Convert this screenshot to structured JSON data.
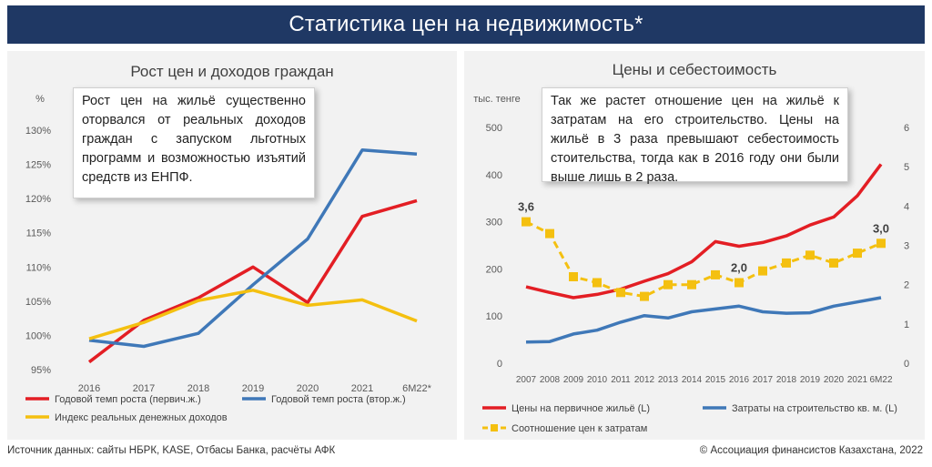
{
  "banner": {
    "title": "Статистика цен на недвижимость*"
  },
  "colors": {
    "red": "#e31e24",
    "blue": "#3f78b8",
    "yellow": "#f4c010",
    "banner": "#1f3864",
    "panel": "#f2f2f2"
  },
  "left_panel": {
    "title": "Рост цен и доходов граждан",
    "note": "Рост цен на жильё существенно оторвался от реальных доходов граждан с запуском льготных программ и возможностью изъятий средств из ЕНПФ."
  },
  "right_panel": {
    "title": "Цены и себестоимость",
    "note": "Так же растет отношение цен на жильё к затратам на его строительство. Цены на жильё в 3 раза превышают себестоимость стоительства, тогда как в 2016 году они были выше лишь в 2 раза."
  },
  "footer": {
    "source": "Источник данных: сайты НБРК, KASE, Отбасы Банка, расчёты АФК",
    "copyright": "© Ассоциация финансистов Казахстана, 2022"
  },
  "chart_data": [
    {
      "type": "line",
      "title": "Рост цен и доходов граждан",
      "ylabel": "%",
      "categories": [
        "2016",
        "2017",
        "2018",
        "2019",
        "2020",
        "2021",
        "6M22*"
      ],
      "ylim": [
        95,
        130
      ],
      "yticks": [
        "95%",
        "100%",
        "105%",
        "110%",
        "115%",
        "120%",
        "125%",
        "130%"
      ],
      "grid": false,
      "legend": "bottom",
      "series": [
        {
          "name": "Годовой темп роста (первич.ж.)",
          "color": "#e31e24",
          "values": [
            96.1,
            102.2,
            105.5,
            110.0,
            104.8,
            117.4,
            119.7
          ]
        },
        {
          "name": "Годовой темп роста (втор.ж.)",
          "color": "#3f78b8",
          "values": [
            99.3,
            98.4,
            100.3,
            107.4,
            114.1,
            127.1,
            126.5
          ]
        },
        {
          "name": "Индекс реальных денежных доходов",
          "color": "#f4c010",
          "values": [
            99.5,
            101.9,
            105.1,
            106.6,
            104.4,
            105.2,
            102.1
          ]
        }
      ]
    },
    {
      "type": "line",
      "title": "Цены и себестоимость",
      "ylabel": "тыс. тенге",
      "categories": [
        "2007",
        "2008",
        "2009",
        "2010",
        "2011",
        "2012",
        "2013",
        "2014",
        "2015",
        "2016",
        "2017",
        "2018",
        "2019",
        "2020",
        "2021",
        "6M22"
      ],
      "ylim": [
        0,
        500
      ],
      "yticks": [
        "0",
        "100",
        "200",
        "300",
        "400",
        "500"
      ],
      "y2lim": [
        0,
        6
      ],
      "y2ticks": [
        "0",
        "1",
        "2",
        "3",
        "4",
        "5",
        "6"
      ],
      "grid": false,
      "legend": "bottom",
      "series": [
        {
          "name": "Цены на первичное жильё (L)",
          "color": "#e31e24",
          "axis": "left",
          "values": [
            162,
            150,
            139,
            146,
            157,
            174,
            190,
            215,
            258,
            248,
            256,
            270,
            293,
            310,
            355,
            422
          ]
        },
        {
          "name": "Затраты на строительство кв. м. (L)",
          "color": "#3f78b8",
          "axis": "left",
          "values": [
            45,
            46,
            62,
            70,
            87,
            101,
            96,
            109,
            115,
            121,
            109,
            106,
            107,
            121,
            130,
            139
          ]
        },
        {
          "name": "Соотношение цен к затратам",
          "color": "#f4c010",
          "axis": "right",
          "style": "dashed-square",
          "values": [
            3.6,
            3.3,
            2.2,
            2.05,
            1.8,
            1.7,
            2.0,
            2.0,
            2.25,
            2.05,
            2.35,
            2.55,
            2.75,
            2.55,
            2.8,
            3.05
          ]
        }
      ],
      "annotations": [
        "3,6",
        "2,0",
        "3,0"
      ]
    }
  ]
}
